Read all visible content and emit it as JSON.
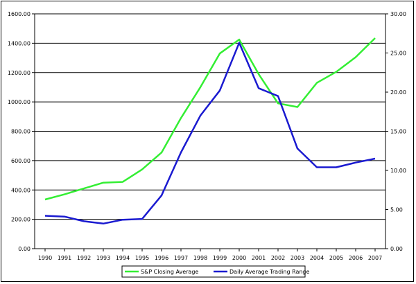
{
  "chart_data": {
    "type": "line",
    "title": "",
    "xlabel": "",
    "ylabel": "",
    "categories": [
      "1990",
      "1991",
      "1992",
      "1993",
      "1994",
      "1995",
      "1996",
      "1997",
      "1998",
      "1999",
      "2000",
      "2001",
      "2002",
      "2003",
      "2004",
      "2005",
      "2006",
      "2007"
    ],
    "y_left": {
      "min": 0,
      "max": 1600,
      "step": 200,
      "tick_labels": [
        "0.00",
        "200.00",
        "400.00",
        "600.00",
        "800.00",
        "1000.00",
        "1200.00",
        "1400.00",
        "1600.00"
      ]
    },
    "y_right": {
      "min": 0,
      "max": 30,
      "step": 5,
      "tick_labels": [
        "0.00",
        "5.00",
        "10.00",
        "15.00",
        "20.00",
        "25.00",
        "30.00"
      ]
    },
    "grid": "horizontal",
    "legend_position": "bottom",
    "series": [
      {
        "name": "S&P Closing Average",
        "axis": "left",
        "color": "#33ee33",
        "values": [
          335,
          370,
          410,
          450,
          455,
          540,
          655,
          890,
          1100,
          1330,
          1425,
          1190,
          990,
          965,
          1130,
          1205,
          1305,
          1435
        ]
      },
      {
        "name": "Daily Average Trading Range",
        "axis": "right",
        "color": "#1a1ad0",
        "values": [
          4.2,
          4.1,
          3.5,
          3.2,
          3.7,
          3.8,
          6.8,
          12.3,
          17.0,
          20.2,
          26.3,
          20.5,
          19.5,
          12.8,
          10.4,
          10.4,
          11.0,
          11.5
        ]
      }
    ]
  }
}
